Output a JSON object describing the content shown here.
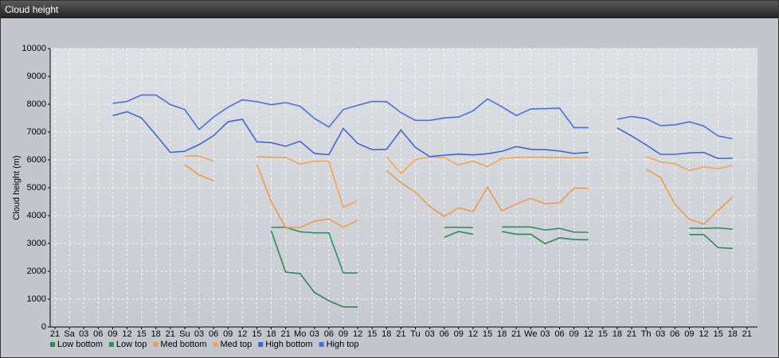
{
  "chart_data": {
    "type": "line",
    "title": "Cloud height",
    "y_label": "Cloud height (m)",
    "categories": [
      "21",
      "Sa",
      "03",
      "06",
      "09",
      "12",
      "15",
      "18",
      "21",
      "Su",
      "03",
      "06",
      "09",
      "12",
      "15",
      "18",
      "21",
      "Mo",
      "03",
      "06",
      "09",
      "12",
      "15",
      "18",
      "21",
      "Tu",
      "03",
      "06",
      "09",
      "12",
      "15",
      "18",
      "21",
      "We",
      "03",
      "06",
      "09",
      "12",
      "15",
      "18",
      "21",
      "Th",
      "03",
      "06",
      "09",
      "12",
      "15",
      "18",
      "21"
    ],
    "ylim": [
      0,
      10000
    ],
    "yticks": [
      0,
      1000,
      2000,
      3000,
      4000,
      5000,
      6000,
      7000,
      8000,
      9000,
      10000
    ],
    "grid": true,
    "series": [
      {
        "name": "Low bottom",
        "color": "#2a8a55",
        "values": [
          null,
          null,
          null,
          null,
          null,
          null,
          null,
          null,
          null,
          null,
          null,
          null,
          null,
          null,
          null,
          3460,
          1970,
          1920,
          1240,
          940,
          720,
          720,
          null,
          null,
          null,
          null,
          null,
          3220,
          3430,
          3330,
          null,
          3430,
          3330,
          3330,
          2990,
          3200,
          3140,
          3130,
          null,
          null,
          null,
          null,
          null,
          null,
          3320,
          3320,
          2850,
          2820,
          null
        ]
      },
      {
        "name": "Low top",
        "color": "#2f8f5e",
        "values": [
          null,
          null,
          null,
          null,
          null,
          null,
          null,
          null,
          null,
          null,
          null,
          null,
          null,
          null,
          null,
          3580,
          3580,
          3420,
          3380,
          3380,
          1940,
          1940,
          null,
          null,
          null,
          null,
          null,
          3580,
          3580,
          3570,
          null,
          3590,
          3590,
          3590,
          3480,
          3540,
          3410,
          3400,
          null,
          null,
          null,
          null,
          null,
          null,
          3550,
          3540,
          3560,
          3510,
          null
        ]
      },
      {
        "name": "Med bottom",
        "color": "#ef9a48",
        "values": [
          null,
          null,
          null,
          null,
          null,
          null,
          null,
          null,
          null,
          5830,
          5460,
          5250,
          null,
          null,
          5840,
          4510,
          3570,
          3580,
          3800,
          3880,
          3580,
          3830,
          null,
          5620,
          5180,
          4840,
          4330,
          3970,
          4280,
          4140,
          5020,
          4170,
          4420,
          4620,
          4430,
          4460,
          4990,
          4980,
          null,
          null,
          null,
          5670,
          5370,
          4410,
          3870,
          3690,
          4190,
          4660,
          null
        ]
      },
      {
        "name": "Med top",
        "color": "#f2a456",
        "values": [
          null,
          null,
          null,
          null,
          null,
          null,
          null,
          null,
          null,
          6140,
          6140,
          5960,
          null,
          null,
          6120,
          6090,
          6090,
          5850,
          5960,
          5950,
          4300,
          4530,
          null,
          6110,
          5510,
          6010,
          6110,
          6080,
          5820,
          5960,
          5760,
          6050,
          6090,
          6100,
          6090,
          6090,
          6080,
          6090,
          null,
          null,
          null,
          6120,
          5930,
          5860,
          5620,
          5750,
          5680,
          5810,
          null
        ]
      },
      {
        "name": "High bottom",
        "color": "#3f66d6",
        "values": [
          null,
          null,
          null,
          null,
          7590,
          7730,
          7510,
          6900,
          6270,
          6310,
          6550,
          6870,
          7370,
          7460,
          6650,
          6620,
          6490,
          6670,
          6230,
          6190,
          7130,
          6590,
          6370,
          6380,
          7070,
          6450,
          6120,
          6170,
          6210,
          6180,
          6220,
          6310,
          6480,
          6380,
          6370,
          6320,
          6230,
          6270,
          null,
          7150,
          6860,
          6540,
          6200,
          6200,
          6250,
          6270,
          6050,
          6060,
          null
        ]
      },
      {
        "name": "High top",
        "color": "#4a70dc",
        "values": [
          null,
          null,
          null,
          null,
          8030,
          8100,
          8330,
          8330,
          7990,
          7810,
          7090,
          7540,
          7890,
          8160,
          8090,
          7980,
          8060,
          7930,
          7490,
          7180,
          7810,
          7960,
          8100,
          8090,
          7700,
          7420,
          7420,
          7510,
          7540,
          7760,
          8190,
          7910,
          7590,
          7830,
          7840,
          7860,
          7160,
          7160,
          null,
          7460,
          7560,
          7480,
          7230,
          7260,
          7370,
          7220,
          6860,
          6760,
          null
        ]
      }
    ]
  }
}
